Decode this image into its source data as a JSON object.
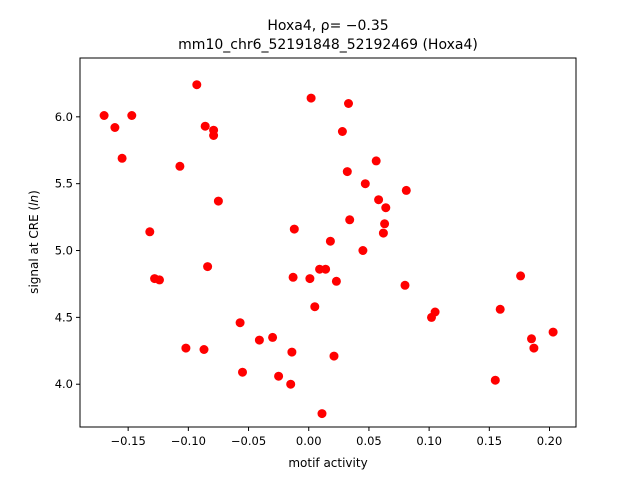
{
  "chart_data": {
    "type": "scatter",
    "title_line1": "Hoxa4, ρ= −0.35",
    "title_line2": "mm10_chr6_52191848_52192469 (Hoxa4)",
    "xlabel": "motif activity",
    "ylabel": "signal at CRE (",
    "ylabel_italic": "ln",
    "ylabel_suffix": ")",
    "xlim": [
      -0.19,
      0.222
    ],
    "ylim": [
      3.68,
      6.44
    ],
    "x_ticks": [
      -0.15,
      -0.1,
      -0.05,
      0.0,
      0.05,
      0.1,
      0.15,
      0.2
    ],
    "x_tick_labels": [
      "−0.15",
      "−0.10",
      "−0.05",
      "0.00",
      "0.05",
      "0.10",
      "0.15",
      "0.20"
    ],
    "y_ticks": [
      4.0,
      4.5,
      5.0,
      5.5,
      6.0
    ],
    "y_tick_labels": [
      "4.0",
      "4.5",
      "5.0",
      "5.5",
      "6.0"
    ],
    "marker_color": "#ff0000",
    "grid": false,
    "points": [
      {
        "x": -0.17,
        "y": 6.01
      },
      {
        "x": -0.161,
        "y": 5.92
      },
      {
        "x": -0.155,
        "y": 5.69
      },
      {
        "x": -0.147,
        "y": 6.01
      },
      {
        "x": -0.132,
        "y": 5.14
      },
      {
        "x": -0.128,
        "y": 4.79
      },
      {
        "x": -0.124,
        "y": 4.78
      },
      {
        "x": -0.107,
        "y": 5.63
      },
      {
        "x": -0.102,
        "y": 4.27
      },
      {
        "x": -0.093,
        "y": 6.24
      },
      {
        "x": -0.087,
        "y": 4.26
      },
      {
        "x": -0.086,
        "y": 5.93
      },
      {
        "x": -0.084,
        "y": 4.88
      },
      {
        "x": -0.079,
        "y": 5.9
      },
      {
        "x": -0.079,
        "y": 5.86
      },
      {
        "x": -0.075,
        "y": 5.37
      },
      {
        "x": -0.057,
        "y": 4.46
      },
      {
        "x": -0.055,
        "y": 4.09
      },
      {
        "x": -0.041,
        "y": 4.33
      },
      {
        "x": -0.03,
        "y": 4.35
      },
      {
        "x": -0.025,
        "y": 4.06
      },
      {
        "x": -0.015,
        "y": 4.0
      },
      {
        "x": -0.014,
        "y": 4.24
      },
      {
        "x": -0.013,
        "y": 4.8
      },
      {
        "x": -0.012,
        "y": 5.16
      },
      {
        "x": 0.001,
        "y": 4.79
      },
      {
        "x": 0.002,
        "y": 6.14
      },
      {
        "x": 0.005,
        "y": 4.58
      },
      {
        "x": 0.009,
        "y": 4.86
      },
      {
        "x": 0.011,
        "y": 3.78
      },
      {
        "x": 0.014,
        "y": 4.86
      },
      {
        "x": 0.018,
        "y": 5.07
      },
      {
        "x": 0.021,
        "y": 4.21
      },
      {
        "x": 0.023,
        "y": 4.77
      },
      {
        "x": 0.028,
        "y": 5.89
      },
      {
        "x": 0.032,
        "y": 5.59
      },
      {
        "x": 0.033,
        "y": 6.1
      },
      {
        "x": 0.034,
        "y": 5.23
      },
      {
        "x": 0.045,
        "y": 5.0
      },
      {
        "x": 0.047,
        "y": 5.5
      },
      {
        "x": 0.056,
        "y": 5.67
      },
      {
        "x": 0.058,
        "y": 5.38
      },
      {
        "x": 0.062,
        "y": 5.13
      },
      {
        "x": 0.063,
        "y": 5.2
      },
      {
        "x": 0.064,
        "y": 5.32
      },
      {
        "x": 0.08,
        "y": 4.74
      },
      {
        "x": 0.081,
        "y": 5.45
      },
      {
        "x": 0.102,
        "y": 4.5
      },
      {
        "x": 0.105,
        "y": 4.54
      },
      {
        "x": 0.155,
        "y": 4.03
      },
      {
        "x": 0.159,
        "y": 4.56
      },
      {
        "x": 0.176,
        "y": 4.81
      },
      {
        "x": 0.185,
        "y": 4.34
      },
      {
        "x": 0.187,
        "y": 4.27
      },
      {
        "x": 0.203,
        "y": 4.39
      }
    ]
  }
}
